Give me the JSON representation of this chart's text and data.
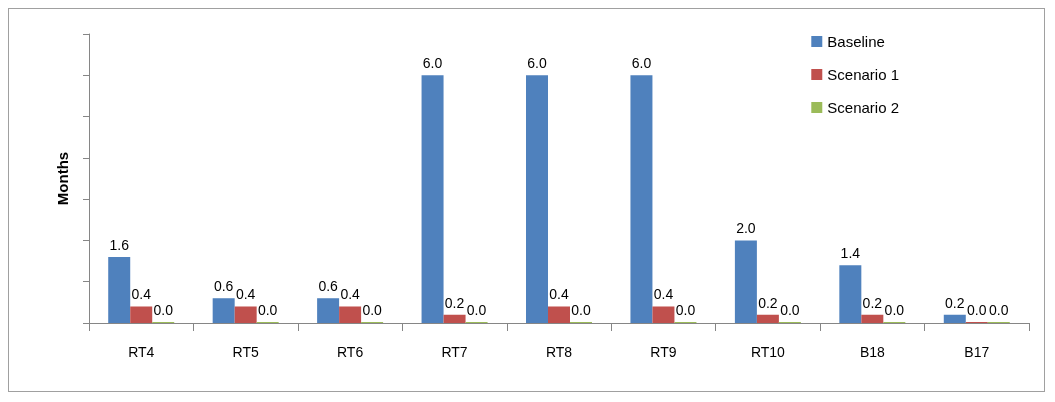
{
  "chart_data": {
    "type": "bar",
    "ylabel": "Months",
    "categories": [
      "RT4",
      "RT5",
      "RT6",
      "RT7",
      "RT8",
      "RT9",
      "RT10",
      "B18",
      "B17"
    ],
    "series": [
      {
        "name": "Baseline",
        "color": "#4f81bd",
        "values": [
          1.6,
          0.6,
          0.6,
          6.0,
          6.0,
          6.0,
          2.0,
          1.4,
          0.2
        ],
        "value_labels": [
          "1.6",
          "0.6",
          "0.6",
          "6.0",
          "6.0",
          "6.0",
          "2.0",
          "1.4",
          "0.2"
        ]
      },
      {
        "name": "Scenario 1",
        "color": "#c0504d",
        "values": [
          0.4,
          0.4,
          0.4,
          0.2,
          0.4,
          0.4,
          0.2,
          0.2,
          0
        ],
        "value_labels": [
          "0.4",
          "0.4",
          "0.4",
          "0.2",
          "0.4",
          "0.4",
          "0.2",
          "0.2",
          "0.0"
        ]
      },
      {
        "name": "Scenario 2",
        "color": "#9bbb59",
        "values": [
          0,
          0,
          0,
          0,
          0,
          0,
          0,
          0,
          0
        ],
        "value_labels": [
          "0.0",
          "0.0",
          "0.0",
          "0.0",
          "0.0",
          "0.0",
          "0.0",
          "0.0",
          "0.0"
        ]
      }
    ],
    "ylim": [
      0,
      7
    ],
    "yticks": [
      {
        "value": 0,
        "label": null
      },
      {
        "value": 1,
        "label": null
      },
      {
        "value": 2,
        "label": null
      },
      {
        "value": 3,
        "label": null
      },
      {
        "value": 4,
        "label": null
      },
      {
        "value": 5,
        "label": null
      },
      {
        "value": 6,
        "label": null
      },
      {
        "value": 7,
        "label": null
      }
    ],
    "grid": false,
    "legend": "top right"
  }
}
